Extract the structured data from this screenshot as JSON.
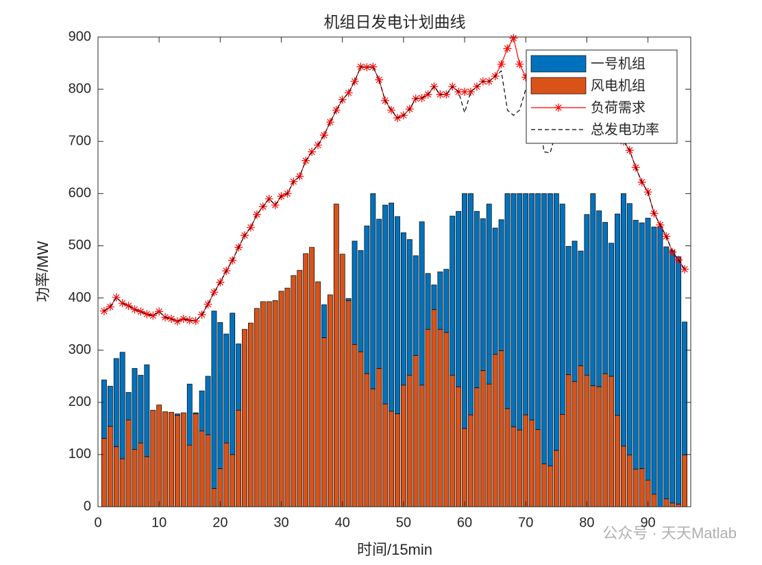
{
  "chart_data": {
    "type": "bar",
    "title": "机组日发电计划曲线",
    "x_label": "时间/15min",
    "y_label": "功率/MW",
    "x": [
      1,
      2,
      3,
      4,
      5,
      6,
      7,
      8,
      9,
      10,
      11,
      12,
      13,
      14,
      15,
      16,
      17,
      18,
      19,
      20,
      21,
      22,
      23,
      24,
      25,
      26,
      27,
      28,
      29,
      30,
      31,
      32,
      33,
      34,
      35,
      36,
      37,
      38,
      39,
      40,
      41,
      42,
      43,
      44,
      45,
      46,
      47,
      48,
      49,
      50,
      51,
      52,
      53,
      54,
      55,
      56,
      57,
      58,
      59,
      60,
      61,
      62,
      63,
      64,
      65,
      66,
      67,
      68,
      69,
      70,
      71,
      72,
      73,
      74,
      75,
      76,
      77,
      78,
      79,
      80,
      81,
      82,
      83,
      84,
      85,
      86,
      87,
      88,
      89,
      90,
      91,
      92,
      93,
      94,
      95,
      96
    ],
    "series": [
      {
        "name": "一号机组",
        "kind": "bar",
        "color": "#0072bd",
        "values": [
          112,
          77,
          169,
          204,
          53,
          155,
          130,
          176,
          0,
          0,
          0,
          0,
          3,
          0,
          117,
          2,
          77,
          112,
          340,
          280,
          209,
          271,
          127,
          0,
          0,
          0,
          0,
          0,
          0,
          0,
          0,
          0,
          0,
          0,
          0,
          0,
          63,
          0,
          0,
          0,
          4,
          198,
          194,
          283,
          374,
          286,
          381,
          399,
          378,
          292,
          260,
          191,
          313,
          107,
          47,
          110,
          121,
          305,
          336,
          450,
          424,
          338,
          291,
          345,
          242,
          251,
          412,
          447,
          453,
          424,
          434,
          452,
          518,
          522,
          492,
          403,
          246,
          269,
          220,
          308,
          368,
          337,
          290,
          255,
          386,
          484,
          482,
          477,
          471,
          502,
          512,
          537,
          483,
          484,
          474,
          255
        ]
      },
      {
        "name": "风电机组",
        "kind": "bar",
        "color": "#d95319",
        "values": [
          131,
          154,
          115,
          92,
          166,
          110,
          122,
          96,
          185,
          195,
          182,
          181,
          175,
          180,
          118,
          178,
          145,
          138,
          35,
          73,
          122,
          100,
          185,
          340,
          352,
          380,
          393,
          393,
          395,
          413,
          419,
          443,
          453,
          485,
          497,
          431,
          324,
          406,
          580,
          484,
          395,
          311,
          297,
          255,
          226,
          265,
          197,
          183,
          178,
          233,
          252,
          290,
          233,
          340,
          378,
          340,
          334,
          252,
          230,
          150,
          176,
          228,
          261,
          235,
          292,
          299,
          188,
          153,
          147,
          176,
          166,
          148,
          82,
          78,
          108,
          177,
          253,
          240,
          270,
          252,
          232,
          230,
          255,
          250,
          175,
          116,
          99,
          72,
          73,
          51,
          24,
          0,
          15,
          7,
          5,
          99
        ]
      },
      {
        "name": "负荷需求",
        "kind": "line",
        "marker": "star",
        "dash": "solid",
        "color": "#ff0000",
        "values": [
          375,
          383,
          401,
          390,
          385,
          378,
          374,
          369,
          366,
          374,
          363,
          360,
          355,
          360,
          357,
          356,
          368,
          388,
          411,
          430,
          452,
          472,
          497,
          520,
          535,
          560,
          575,
          590,
          578,
          595,
          600,
          623,
          633,
          663,
          680,
          693,
          712,
          737,
          760,
          780,
          793,
          815,
          843,
          842,
          843,
          818,
          778,
          760,
          745,
          750,
          762,
          782,
          783,
          790,
          805,
          790,
          790,
          805,
          795,
          795,
          795,
          805,
          815,
          815,
          825,
          848,
          878,
          898,
          848,
          823,
          810,
          790,
          775,
          770,
          780,
          790,
          800,
          790,
          780,
          770,
          760,
          750,
          740,
          730,
          715,
          700,
          683,
          650,
          622,
          603,
          562,
          540,
          518,
          488,
          473,
          455
        ]
      },
      {
        "name": "总发电功率",
        "kind": "line",
        "marker": "none",
        "dash": "dashed",
        "color": "#000000",
        "values": [
          375,
          383,
          401,
          390,
          385,
          378,
          374,
          369,
          366,
          374,
          363,
          360,
          355,
          360,
          357,
          356,
          368,
          388,
          411,
          430,
          452,
          472,
          497,
          520,
          535,
          560,
          575,
          590,
          578,
          595,
          600,
          623,
          633,
          663,
          680,
          693,
          712,
          737,
          760,
          780,
          793,
          815,
          843,
          842,
          843,
          818,
          778,
          760,
          745,
          750,
          762,
          782,
          783,
          790,
          805,
          790,
          790,
          805,
          795,
          755,
          795,
          805,
          815,
          815,
          825,
          835,
          760,
          750,
          760,
          800,
          800,
          760,
          680,
          678,
          720,
          790,
          800,
          790,
          780,
          770,
          760,
          750,
          740,
          730,
          715,
          700,
          683,
          650,
          622,
          603,
          562,
          540,
          518,
          488,
          473,
          455
        ]
      }
    ],
    "xlim": [
      0,
      97
    ],
    "xticks": [
      0,
      10,
      20,
      30,
      40,
      50,
      60,
      70,
      80,
      90
    ],
    "ylim": [
      0,
      900
    ],
    "yticks": [
      0,
      100,
      200,
      300,
      400,
      500,
      600,
      700,
      800,
      900
    ],
    "legend": "upper right",
    "watermark": "公众号 · 天天Matlab"
  }
}
